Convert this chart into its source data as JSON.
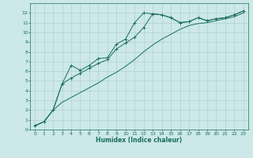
{
  "xlabel": "Humidex (Indice chaleur)",
  "background_color": "#cce8e8",
  "grid_color": "#aacccc",
  "line_color": "#1a6e5e",
  "x_values": [
    0,
    1,
    2,
    3,
    4,
    5,
    6,
    7,
    8,
    9,
    10,
    11,
    12,
    13,
    14,
    15,
    16,
    17,
    18,
    19,
    20,
    21,
    22,
    23
  ],
  "line1_y": [
    0.4,
    0.8,
    2.0,
    4.7,
    6.6,
    6.1,
    6.6,
    7.3,
    7.4,
    8.8,
    9.3,
    11.0,
    12.0,
    11.9,
    11.8,
    11.5,
    11.0,
    11.1,
    11.5,
    11.2,
    11.4,
    11.5,
    11.8,
    12.2
  ],
  "line2_y": [
    0.4,
    0.8,
    2.0,
    4.7,
    5.3,
    5.8,
    6.3,
    6.8,
    7.2,
    8.3,
    8.9,
    9.5,
    10.5,
    11.9,
    11.8,
    11.5,
    11.0,
    11.1,
    11.5,
    11.2,
    11.4,
    11.5,
    11.8,
    12.2
  ],
  "line3_y": [
    0.4,
    0.8,
    2.0,
    2.8,
    3.3,
    3.8,
    4.3,
    4.8,
    5.4,
    5.9,
    6.5,
    7.2,
    8.0,
    8.7,
    9.3,
    9.8,
    10.3,
    10.7,
    10.9,
    11.0,
    11.2,
    11.4,
    11.6,
    12.0
  ],
  "ylim": [
    0,
    13
  ],
  "xlim": [
    -0.5,
    23.5
  ],
  "yticks": [
    0,
    1,
    2,
    3,
    4,
    5,
    6,
    7,
    8,
    9,
    10,
    11,
    12
  ],
  "xticks": [
    0,
    1,
    2,
    3,
    4,
    5,
    6,
    7,
    8,
    9,
    10,
    11,
    12,
    13,
    14,
    15,
    16,
    17,
    18,
    19,
    20,
    21,
    22,
    23
  ]
}
